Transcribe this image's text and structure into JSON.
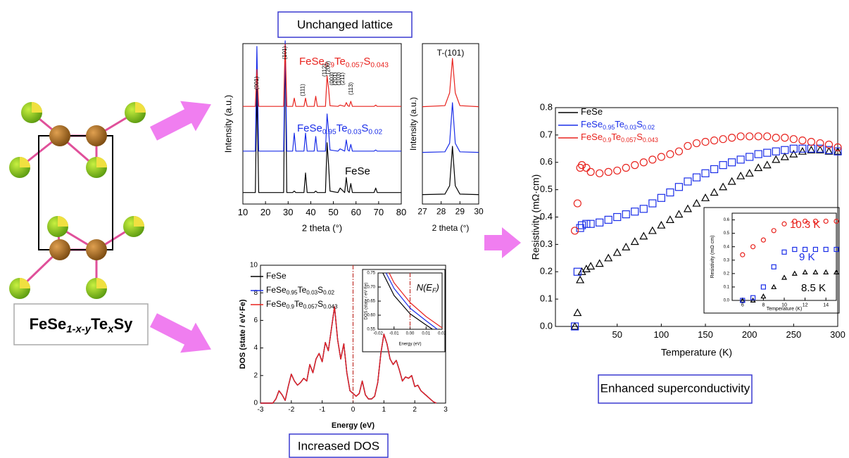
{
  "labels": {
    "top": "Unchanged lattice",
    "dos": "Increased DOS",
    "sc": "Enhanced superconductivity",
    "formula": "FeSe1-x-yTexSy"
  },
  "chart_data": [
    {
      "type": "line",
      "xlabel": "2 theta (°)",
      "ylabel": "Intensity (a.u.)",
      "xlim": [
        10,
        80
      ],
      "xticks": [
        10,
        20,
        30,
        40,
        50,
        60,
        70,
        80
      ],
      "ylim": [
        0,
        100
      ],
      "annotations": [
        "(001)",
        "(101)",
        "(111)",
        "(112)",
        "(200)",
        "(003)",
        "(201)",
        "(103)",
        "(211)",
        "(113)"
      ],
      "x": [
        10,
        15.5,
        16.2,
        17,
        28,
        28.7,
        29.4,
        32,
        32.7,
        33.4,
        37,
        37.7,
        38.4,
        41.5,
        42.2,
        42.9,
        46.5,
        47.2,
        47.9,
        48.5,
        52,
        53,
        55,
        55.7,
        56.4,
        57,
        57.7,
        58.4,
        62,
        68,
        68.7,
        69.4,
        80
      ],
      "series": [
        {
          "name": "FeSe",
          "color": "#000000",
          "values": [
            2,
            2,
            70,
            2,
            2,
            100,
            2,
            2,
            3,
            2,
            2,
            15,
            2,
            2,
            3,
            2,
            2,
            35,
            20,
            3,
            2,
            5,
            2,
            12,
            3,
            2,
            8,
            2,
            2,
            2,
            5,
            2,
            2
          ]
        },
        {
          "name": "FeSe0.95Te0.03S0.02",
          "color": "#1a2ee8",
          "values": [
            2,
            2,
            95,
            2,
            2,
            100,
            2,
            2,
            18,
            2,
            2,
            18,
            2,
            2,
            15,
            2,
            2,
            35,
            20,
            3,
            2,
            4,
            2,
            12,
            3,
            2,
            8,
            2,
            2,
            2,
            3,
            2,
            2
          ]
        },
        {
          "name": "FeSe0.9Te0.057S0.043",
          "color": "#e8231e",
          "values": [
            2,
            2,
            60,
            2,
            2,
            100,
            2,
            2,
            15,
            2,
            2,
            15,
            2,
            2,
            18,
            2,
            2,
            50,
            30,
            3,
            2,
            4,
            2,
            8,
            3,
            2,
            10,
            2,
            2,
            2,
            4,
            2,
            2
          ]
        }
      ]
    },
    {
      "type": "line",
      "title": "T-(101)",
      "xlabel": "2 theta (°)",
      "ylabel": "Intensity (a.u.)",
      "xlim": [
        27,
        30
      ],
      "xticks": [
        27,
        28,
        29,
        30
      ],
      "ylim": [
        0,
        100
      ],
      "x": [
        27,
        28.2,
        28.45,
        28.6,
        28.75,
        29,
        30
      ],
      "series": [
        {
          "color": "#000000",
          "values": [
            2,
            3,
            20,
            100,
            20,
            3,
            2
          ]
        },
        {
          "color": "#1a2ee8",
          "values": [
            2,
            3,
            20,
            100,
            20,
            3,
            2
          ]
        },
        {
          "color": "#e8231e",
          "values": [
            2,
            4,
            30,
            100,
            30,
            4,
            2
          ]
        }
      ]
    },
    {
      "type": "line",
      "xlabel": "Energy (eV)",
      "ylabel": "DOS (state / eV·Fe)",
      "xlim": [
        -3,
        3
      ],
      "xticks": [
        -3,
        -2,
        -1,
        0,
        1,
        2,
        3
      ],
      "ylim": [
        0,
        10
      ],
      "yticks": [
        0,
        2,
        4,
        6,
        8,
        10
      ],
      "reference_line": 0,
      "x": [
        -3,
        -2.6,
        -2.5,
        -2.4,
        -2.3,
        -2.2,
        -2.1,
        -2.0,
        -1.9,
        -1.8,
        -1.7,
        -1.6,
        -1.5,
        -1.4,
        -1.3,
        -1.2,
        -1.1,
        -1.0,
        -0.9,
        -0.8,
        -0.7,
        -0.6,
        -0.5,
        -0.4,
        -0.3,
        -0.2,
        -0.1,
        0,
        0.1,
        0.2,
        0.3,
        0.4,
        0.5,
        0.6,
        0.7,
        0.8,
        0.9,
        1.0,
        1.1,
        1.2,
        1.3,
        1.4,
        1.5,
        1.6,
        1.7,
        1.8,
        1.9,
        2.0,
        2.1,
        2.2,
        2.3,
        2.4,
        2.5,
        2.6,
        2.7
      ],
      "series": [
        {
          "name": "FeSe",
          "color": "#000000",
          "values": [
            0,
            0,
            0.3,
            0.9,
            0.6,
            0.2,
            1.2,
            2.1,
            1.6,
            1.3,
            1.5,
            1.8,
            1.6,
            2.8,
            2.2,
            3.2,
            3.6,
            3.0,
            4.4,
            3.8,
            5.4,
            7.0,
            4.6,
            3.2,
            4.3,
            2.2,
            0.9,
            0.7,
            0.5,
            0.7,
            1.6,
            0.6,
            0.3,
            0.3,
            0.5,
            1.5,
            3.6,
            5.0,
            4.3,
            3.2,
            2.8,
            3.1,
            2.4,
            1.6,
            1.9,
            1.8,
            2.0,
            1.2,
            1.3,
            0.9,
            0.7,
            0.5,
            0.3,
            0.1,
            0
          ]
        },
        {
          "name": "FeSe0.95Te0.03S0.02",
          "color": "#1a2ee8",
          "values": [
            0,
            0,
            0.3,
            0.9,
            0.6,
            0.2,
            1.2,
            2.1,
            1.6,
            1.3,
            1.5,
            1.8,
            1.6,
            2.8,
            2.2,
            3.2,
            3.6,
            3.0,
            4.4,
            3.8,
            5.4,
            7.0,
            4.6,
            3.2,
            4.3,
            2.2,
            0.9,
            0.7,
            0.5,
            0.7,
            1.6,
            0.6,
            0.3,
            0.3,
            0.5,
            1.5,
            3.6,
            5.0,
            4.3,
            3.2,
            2.8,
            3.1,
            2.4,
            1.6,
            1.9,
            1.8,
            2.0,
            1.2,
            1.3,
            0.9,
            0.7,
            0.5,
            0.3,
            0.1,
            0
          ]
        },
        {
          "name": "FeSe0.9Te0.057S0.043",
          "color": "#e8231e",
          "values": [
            0,
            0,
            0.3,
            0.9,
            0.6,
            0.2,
            1.2,
            2.1,
            1.6,
            1.3,
            1.5,
            1.8,
            1.6,
            2.8,
            2.2,
            3.2,
            3.6,
            3.0,
            4.4,
            3.8,
            5.4,
            7.0,
            4.6,
            3.2,
            4.3,
            2.2,
            0.9,
            0.7,
            0.5,
            0.7,
            1.6,
            0.6,
            0.3,
            0.3,
            0.5,
            1.5,
            3.6,
            5.0,
            4.3,
            3.2,
            2.8,
            3.1,
            2.4,
            1.6,
            1.9,
            1.8,
            2.0,
            1.2,
            1.3,
            0.9,
            0.7,
            0.5,
            0.3,
            0.1,
            0
          ]
        }
      ]
    },
    {
      "type": "line",
      "xlabel": "Energy (eV)",
      "ylabel": "DOS (state / eV·Fe)",
      "xlim": [
        -0.02,
        0.02
      ],
      "xticks": [
        -0.02,
        -0.01,
        {
          "value": 0,
          "label": "0.00"
        },
        0.01,
        0.02
      ],
      "ylim": [
        0.55,
        0.75
      ],
      "yticks": [
        0.55,
        {
          "value": 0.6,
          "label": "0.60"
        },
        0.65,
        {
          "value": 0.7,
          "label": "0.70"
        },
        0.75
      ],
      "reference_line": 0,
      "annotations": [
        "N(EF)"
      ],
      "series": [
        {
          "color": "#000000",
          "x": [
            -0.017,
            -0.01,
            0,
            0.01,
            0.014
          ],
          "values": [
            0.75,
            0.67,
            0.605,
            0.565,
            0.55
          ]
        },
        {
          "color": "#1a2ee8",
          "x": [
            -0.015,
            -0.01,
            0,
            0.01,
            0.017
          ],
          "values": [
            0.75,
            0.695,
            0.625,
            0.58,
            0.55
          ]
        },
        {
          "color": "#e8231e",
          "x": [
            -0.013,
            -0.01,
            0,
            0.01,
            0.02
          ],
          "values": [
            0.75,
            0.715,
            0.645,
            0.595,
            0.555
          ]
        }
      ]
    },
    {
      "type": "scatter",
      "xlabel": "Temperature (K)",
      "ylabel": "Resistivity (mΩ·cm)",
      "xlim": [
        -20,
        300
      ],
      "xticks": [
        50,
        100,
        150,
        200,
        250,
        300
      ],
      "ylim": [
        0,
        0.8
      ],
      "yticks": [
        {
          "value": 0,
          "label": "0.0"
        },
        0.1,
        0.2,
        0.3,
        0.4,
        0.5,
        0.6,
        0.7,
        0.8
      ],
      "x": [
        2,
        5,
        8,
        10,
        15,
        20,
        30,
        40,
        50,
        60,
        70,
        80,
        90,
        100,
        110,
        120,
        130,
        140,
        150,
        160,
        170,
        180,
        190,
        200,
        210,
        220,
        230,
        240,
        250,
        260,
        270,
        280,
        290,
        300
      ],
      "series": [
        {
          "name": "FeSe",
          "color": "#000000",
          "values": [
            0,
            0.05,
            0.17,
            0.2,
            0.21,
            0.22,
            0.23,
            0.25,
            0.27,
            0.29,
            0.31,
            0.33,
            0.35,
            0.37,
            0.39,
            0.41,
            0.43,
            0.45,
            0.47,
            0.49,
            0.51,
            0.53,
            0.55,
            0.56,
            0.58,
            0.59,
            0.61,
            0.62,
            0.63,
            0.64,
            0.645,
            0.645,
            0.64,
            0.64
          ]
        },
        {
          "name": "FeSe0.95Te0.03S0.02",
          "color": "#1a2ee8",
          "values": [
            0,
            0.2,
            0.36,
            0.37,
            0.375,
            0.375,
            0.38,
            0.39,
            0.4,
            0.41,
            0.42,
            0.43,
            0.45,
            0.47,
            0.49,
            0.51,
            0.53,
            0.545,
            0.56,
            0.575,
            0.59,
            0.6,
            0.61,
            0.62,
            0.63,
            0.635,
            0.64,
            0.645,
            0.65,
            0.65,
            0.65,
            0.65,
            0.645,
            0.64
          ]
        },
        {
          "name": "FeSe0.9Te0.057S0.043",
          "color": "#e8231e",
          "values": [
            0.35,
            0.45,
            0.58,
            0.59,
            0.58,
            0.565,
            0.56,
            0.565,
            0.57,
            0.58,
            0.59,
            0.6,
            0.61,
            0.62,
            0.63,
            0.64,
            0.66,
            0.67,
            0.675,
            0.68,
            0.685,
            0.69,
            0.695,
            0.695,
            0.695,
            0.695,
            0.69,
            0.69,
            0.685,
            0.68,
            0.675,
            0.67,
            0.665,
            0.655
          ]
        }
      ]
    },
    {
      "type": "scatter",
      "xlabel": "Temperature (K)",
      "ylabel": "Resistivity (mΩ·cm)",
      "xlim": [
        5,
        15
      ],
      "xticks": [
        6,
        8,
        10,
        12,
        14
      ],
      "ylim": [
        0,
        0.65
      ],
      "yticks": [
        {
          "value": 0,
          "label": "0.0"
        },
        0.1,
        0.2,
        0.3,
        0.4,
        0.5,
        0.6
      ],
      "annotations": [
        "10.3 K",
        "9 K",
        "8.5 K"
      ],
      "x": [
        6,
        7,
        8,
        9,
        10,
        11,
        12,
        13,
        14,
        15
      ],
      "series": [
        {
          "color": "#000000",
          "values": [
            0,
            0,
            0.03,
            0.1,
            0.17,
            0.2,
            0.21,
            0.21,
            0.21,
            0.21
          ]
        },
        {
          "color": "#1a2ee8",
          "values": [
            0,
            0.02,
            0.1,
            0.25,
            0.36,
            0.38,
            0.38,
            0.38,
            0.38,
            0.38
          ]
        },
        {
          "color": "#e8231e",
          "values": [
            0.34,
            0.4,
            0.45,
            0.52,
            0.57,
            0.59,
            0.59,
            0.59,
            0.59,
            0.59
          ]
        }
      ]
    }
  ]
}
